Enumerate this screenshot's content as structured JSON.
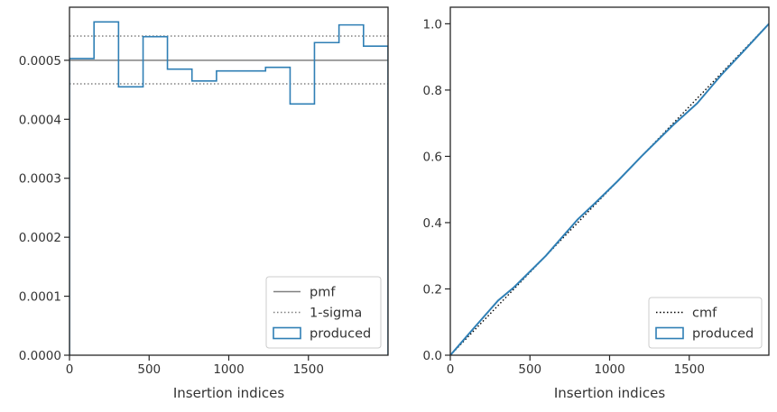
{
  "chart_data": [
    {
      "type": "line",
      "xlabel": "Insertion indices",
      "ylabel": "",
      "xlim": [
        0,
        2000
      ],
      "ylim": [
        0,
        0.00059
      ],
      "xticks": [
        0,
        500,
        1000,
        1500
      ],
      "xtick_labels": [
        "0",
        "500",
        "1000",
        "1500"
      ],
      "yticks": [
        0,
        0.0001,
        0.0002,
        0.0003,
        0.0004,
        0.0005
      ],
      "ytick_labels": [
        "0.0000",
        "0.0001",
        "0.0002",
        "0.0003",
        "0.0004",
        "0.0005"
      ],
      "grid": false,
      "legend_position": "lower-right",
      "legend": [
        "pmf",
        "1-sigma",
        "produced"
      ],
      "colors": {
        "pmf": "#808080",
        "sigma": "#808080",
        "produced": "#2f7fb5"
      },
      "pmf": 0.0005,
      "sigma_band": [
        0.00046,
        0.000541
      ],
      "produced": {
        "bin_edges": [
          0,
          154,
          308,
          462,
          615,
          769,
          923,
          1077,
          1231,
          1385,
          1538,
          1692,
          1846,
          2000
        ],
        "values": [
          0.000503,
          0.000565,
          0.000455,
          0.00054,
          0.000485,
          0.000465,
          0.000482,
          0.000482,
          0.000488,
          0.000426,
          0.00053,
          0.00056,
          0.000524
        ]
      }
    },
    {
      "type": "line",
      "xlabel": "Insertion indices",
      "ylabel": "",
      "xlim": [
        0,
        2000
      ],
      "ylim": [
        0,
        1.05
      ],
      "xticks": [
        0,
        500,
        1000,
        1500
      ],
      "xtick_labels": [
        "0",
        "500",
        "1000",
        "1500"
      ],
      "yticks": [
        0,
        0.2,
        0.4,
        0.6,
        0.8,
        1.0
      ],
      "ytick_labels": [
        "0.0",
        "0.2",
        "0.4",
        "0.6",
        "0.8",
        "1.0"
      ],
      "grid": false,
      "legend_position": "lower-right",
      "legend": [
        "cmf",
        "produced"
      ],
      "colors": {
        "cmf": "#000000",
        "produced": "#2f7fb5"
      },
      "cmf": {
        "x": [
          0,
          2000
        ],
        "y": [
          0,
          1.0
        ]
      },
      "produced": {
        "x": [
          0,
          150,
          300,
          400,
          600,
          800,
          900,
          1050,
          1200,
          1400,
          1550,
          1700,
          1850,
          2000
        ],
        "y": [
          0,
          0.083,
          0.165,
          0.205,
          0.3,
          0.41,
          0.455,
          0.525,
          0.6,
          0.695,
          0.76,
          0.845,
          0.922,
          1.0
        ]
      }
    }
  ]
}
